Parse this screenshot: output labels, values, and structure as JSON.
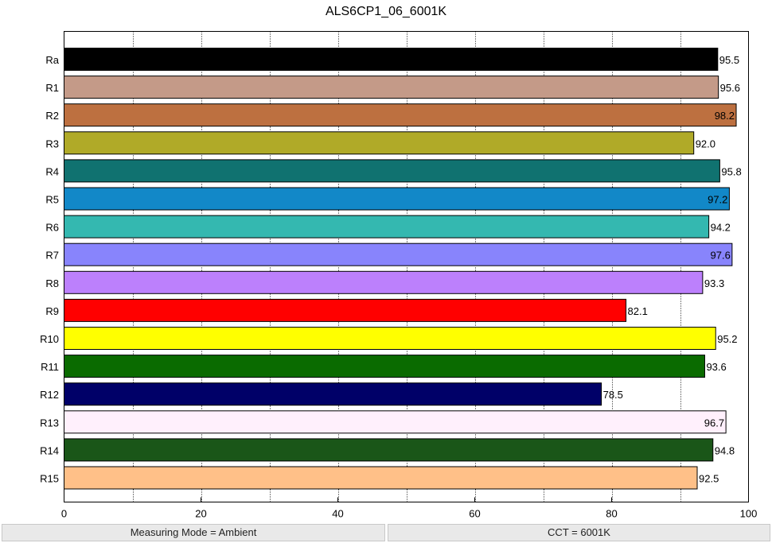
{
  "chart_data": {
    "type": "bar",
    "orientation": "horizontal",
    "title": "ALS6CP1_06_6001K",
    "xlabel": "",
    "ylabel": "",
    "xlim": [
      0,
      100
    ],
    "x_ticks": [
      0,
      20,
      40,
      60,
      80,
      100
    ],
    "grid": "vertical dotted, every 10",
    "categories": [
      "Ra",
      "R1",
      "R2",
      "R3",
      "R4",
      "R5",
      "R6",
      "R7",
      "R8",
      "R9",
      "R10",
      "R11",
      "R12",
      "R13",
      "R14",
      "R15"
    ],
    "values": [
      95.5,
      95.6,
      98.2,
      92.0,
      95.8,
      97.2,
      94.2,
      97.6,
      93.3,
      82.1,
      95.2,
      93.6,
      78.5,
      96.7,
      94.8,
      92.5
    ],
    "value_labels": [
      "95.5",
      "95.6",
      "98.2",
      "92.0",
      "95.8",
      "97.2",
      "94.2",
      "97.6",
      "93.3",
      "82.1",
      "95.2",
      "93.6",
      "78.5",
      "96.7",
      "94.8",
      "92.5"
    ],
    "colors": [
      "#000000",
      "#c49a88",
      "#bd7040",
      "#b0aa28",
      "#107270",
      "#1288c8",
      "#34b8b0",
      "#8884fc",
      "#bc80fc",
      "#ff0000",
      "#ffff00",
      "#0a6b00",
      "#000068",
      "#fff0fc",
      "#1a5618",
      "#ffc088"
    ]
  },
  "status_bar": {
    "left": "Measuring Mode = Ambient",
    "right": "CCT = 6001K"
  }
}
